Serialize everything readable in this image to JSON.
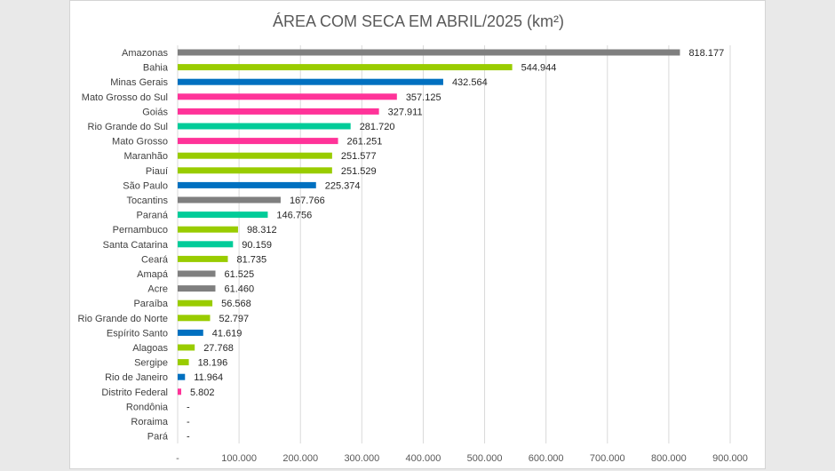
{
  "chart_data": {
    "type": "bar",
    "orientation": "horizontal",
    "title": "ÁREA COM SECA EM ABRIL/2025 (km²)",
    "xlim": [
      0,
      900000
    ],
    "grid": "vertical",
    "x_ticks": [
      "-",
      "100.000",
      "200.000",
      "300.000",
      "400.000",
      "500.000",
      "600.000",
      "700.000",
      "800.000",
      "900.000"
    ],
    "categories": [
      "Amazonas",
      "Bahia",
      "Minas Gerais",
      "Mato Grosso do Sul",
      "Goiás",
      "Rio Grande do Sul",
      "Mato Grosso",
      "Maranhão",
      "Piauí",
      "São Paulo",
      "Tocantins",
      "Paraná",
      "Pernambuco",
      "Santa Catarina",
      "Ceará",
      "Amapá",
      "Acre",
      "Paraíba",
      "Rio Grande do Norte",
      "Espírito Santo",
      "Alagoas",
      "Sergipe",
      "Rio de Janeiro",
      "Distrito Federal",
      "Rondônia",
      "Roraima",
      "Pará"
    ],
    "values": [
      818177,
      544944,
      432564,
      357125,
      327911,
      281720,
      261251,
      251577,
      251529,
      225374,
      167766,
      146756,
      98312,
      90159,
      81735,
      61525,
      61460,
      56568,
      52797,
      41619,
      27768,
      18196,
      11964,
      5802,
      0,
      0,
      0
    ],
    "value_labels": [
      "818.177",
      "544.944",
      "432.564",
      "357.125",
      "327.911",
      "281.720",
      "261.251",
      "251.577",
      "251.529",
      "225.374",
      "167.766",
      "146.756",
      "98.312",
      "90.159",
      "81.735",
      "61.525",
      "61.460",
      "56.568",
      "52.797",
      "41.619",
      "27.768",
      "18.196",
      "11.964",
      "5.802",
      "-",
      "-",
      "-"
    ],
    "bar_colors": [
      "#7f7f7f",
      "#99cc00",
      "#0070c0",
      "#ff3399",
      "#ff3399",
      "#00cc99",
      "#ff3399",
      "#99cc00",
      "#99cc00",
      "#0070c0",
      "#7f7f7f",
      "#00cc99",
      "#99cc00",
      "#00cc99",
      "#99cc00",
      "#7f7f7f",
      "#7f7f7f",
      "#99cc00",
      "#99cc00",
      "#0070c0",
      "#99cc00",
      "#99cc00",
      "#0070c0",
      "#ff3399",
      "#99cc00",
      "#7f7f7f",
      "#7f7f7f"
    ]
  }
}
